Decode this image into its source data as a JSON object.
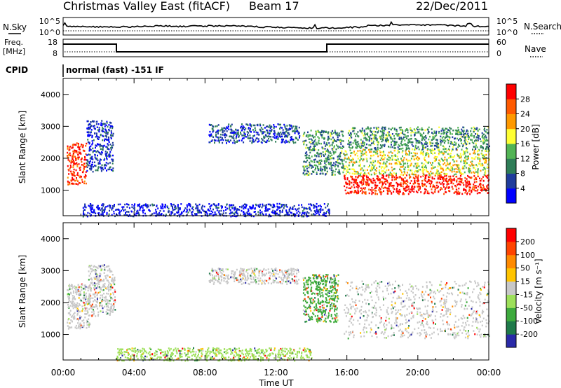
{
  "header": {
    "title": "Christmas Valley East (fitACF)",
    "beam": "Beam 17",
    "date": "22/Dec/2011"
  },
  "top_panels": {
    "nsky_label": "N.Sky",
    "nsky_ticks": [
      "10^5",
      "10^0"
    ],
    "nsearch_label": "N.Search",
    "nsearch_ticks": [
      "10^5",
      "10^0"
    ],
    "freq_label": "Freq.",
    "freq_unit": "[MHz]",
    "freq_ticks": [
      "18",
      "8"
    ],
    "nave_label": "Nave",
    "nave_ticks": [
      "60",
      "0"
    ],
    "cpid_label": "CPID",
    "cpid_text": "normal (fast) -151 IF"
  },
  "colors": {
    "power_scale": [
      "#0000ff",
      "#1f3c9c",
      "#2e7d57",
      "#52b455",
      "#ffff33",
      "#ff9900",
      "#ff5a00",
      "#ff0000"
    ],
    "velocity_scale": [
      "#2a2aa8",
      "#1f7a4a",
      "#3daa3d",
      "#9de05a",
      "#c8c8c8",
      "#ffc400",
      "#ff8a00",
      "#ff4400",
      "#ff0000"
    ]
  },
  "chart_data": [
    {
      "type": "heatmap",
      "name": "power",
      "xlabel": "",
      "ylabel": "Slant Range [km]",
      "xlim": [
        0,
        24
      ],
      "ylim": [
        200,
        4500
      ],
      "y_ticks": [
        "1000",
        "2000",
        "3000",
        "4000"
      ],
      "colorbar": {
        "label": "Power [dB]",
        "ticks": [
          "4",
          "8",
          "12",
          "16",
          "20",
          "24",
          "28"
        ],
        "range": [
          0,
          32
        ]
      },
      "regions": [
        {
          "t0": 0.2,
          "t1": 1.3,
          "r0": 1200,
          "r1": 2500,
          "level": 0.9
        },
        {
          "t0": 1.3,
          "t1": 2.8,
          "r0": 1600,
          "r1": 3200,
          "level": 0.15
        },
        {
          "t0": 8.2,
          "t1": 13.3,
          "r0": 2500,
          "r1": 3100,
          "level": 0.2
        },
        {
          "t0": 13.5,
          "t1": 15.8,
          "r0": 1500,
          "r1": 2900,
          "level": 0.35
        },
        {
          "t0": 15.8,
          "t1": 24.0,
          "r0": 900,
          "r1": 1500,
          "level": 0.95
        },
        {
          "t0": 15.8,
          "t1": 24.0,
          "r0": 1500,
          "r1": 2300,
          "level": 0.55
        },
        {
          "t0": 16.0,
          "t1": 24.0,
          "r0": 2300,
          "r1": 3000,
          "level": 0.35
        },
        {
          "t0": 1.0,
          "t1": 15.0,
          "r0": 200,
          "r1": 600,
          "level": 0.1
        }
      ]
    },
    {
      "type": "heatmap",
      "name": "velocity",
      "xlabel": "Time UT",
      "ylabel": "Slant Range [km]",
      "xlim": [
        0,
        24
      ],
      "ylim": [
        200,
        4500
      ],
      "x_ticks": [
        "00:00",
        "04:00",
        "08:00",
        "12:00",
        "16:00",
        "20:00",
        "00:00"
      ],
      "y_ticks": [
        "1000",
        "2000",
        "3000",
        "4000"
      ],
      "colorbar": {
        "label": "Velocity [m s⁻¹]",
        "ticks": [
          "200",
          "100",
          "50",
          "15",
          "-15",
          "-50",
          "-100",
          "-200"
        ],
        "range": [
          -250,
          250
        ]
      },
      "regions": [
        {
          "t0": 0.2,
          "t1": 1.5,
          "r0": 1200,
          "r1": 2600,
          "level": 0.5
        },
        {
          "t0": 1.4,
          "t1": 2.9,
          "r0": 1600,
          "r1": 3200,
          "level": 0.55
        },
        {
          "t0": 8.2,
          "t1": 13.3,
          "r0": 2600,
          "r1": 3100,
          "level": 0.5
        },
        {
          "t0": 13.5,
          "t1": 15.5,
          "r0": 1400,
          "r1": 2900,
          "level": 0.3
        },
        {
          "t0": 15.8,
          "t1": 24.0,
          "r0": 900,
          "r1": 2700,
          "level": 0.5
        },
        {
          "t0": 3.0,
          "t1": 14.0,
          "r0": 200,
          "r1": 600,
          "level": 0.35
        }
      ]
    }
  ]
}
